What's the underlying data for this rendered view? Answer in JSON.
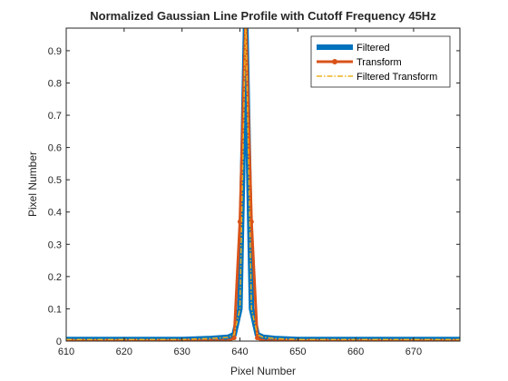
{
  "chart_data": {
    "type": "line",
    "title": "Normalized Gaussian Line Profile with Cutoff Frequency 45Hz",
    "xlabel": "Pixel Number",
    "ylabel": "Pixel Number",
    "xlim": [
      610,
      678
    ],
    "ylim": [
      0,
      0.97
    ],
    "xticks": [
      "610",
      "620",
      "630",
      "640",
      "650",
      "660",
      "670"
    ],
    "yticks": [
      "0",
      "0.1",
      "0.2",
      "0.3",
      "0.4",
      "0.5",
      "0.6",
      "0.7",
      "0.8",
      "0.9"
    ],
    "grid": false,
    "legend_position": "top-right",
    "series": [
      {
        "name": "Filtered",
        "color": "#0072BD",
        "style": "solid-thick",
        "x": [
          610,
          630,
          635,
          638,
          639,
          640,
          641,
          642,
          643,
          644,
          646,
          650,
          678
        ],
        "y": [
          0.005,
          0.005,
          0.008,
          0.012,
          0.02,
          0.1,
          1.0,
          0.1,
          0.02,
          0.012,
          0.008,
          0.005,
          0.005
        ]
      },
      {
        "name": "Transform",
        "color": "#D95319",
        "style": "solid-marker",
        "x": [
          610,
          611,
          612,
          613,
          614,
          615,
          616,
          617,
          618,
          619,
          620,
          621,
          622,
          623,
          624,
          625,
          626,
          627,
          628,
          629,
          630,
          631,
          632,
          633,
          634,
          635,
          636,
          637,
          638,
          639,
          640,
          641,
          642,
          643,
          644,
          645,
          646,
          647,
          648,
          649,
          650,
          651,
          652,
          653,
          654,
          655,
          656,
          657,
          658,
          659,
          660,
          661,
          662,
          663,
          664,
          665,
          666,
          667,
          668,
          669,
          670,
          671,
          672,
          673,
          674,
          675,
          676,
          677,
          678
        ],
        "y": [
          0,
          0,
          0,
          0,
          0,
          0,
          0,
          0,
          0,
          0,
          0,
          0,
          0,
          0,
          0,
          0,
          0,
          0,
          0,
          0,
          0,
          0,
          0,
          0,
          0,
          0,
          0,
          0,
          0,
          0.01,
          0.37,
          1.0,
          0.37,
          0.01,
          0,
          0,
          0,
          0,
          0,
          0,
          0,
          0,
          0,
          0,
          0,
          0,
          0,
          0,
          0,
          0,
          0,
          0,
          0,
          0,
          0,
          0,
          0,
          0,
          0,
          0,
          0,
          0,
          0,
          0,
          0,
          0,
          0,
          0,
          0
        ]
      },
      {
        "name": "Filtered Transform",
        "color": "#EDB120",
        "style": "dash-dot",
        "x": [
          610,
          630,
          635,
          638,
          639,
          640,
          641,
          642,
          643,
          644,
          646,
          650,
          678
        ],
        "y": [
          0.005,
          0.005,
          0.008,
          0.012,
          0.02,
          0.1,
          1.0,
          0.1,
          0.02,
          0.012,
          0.008,
          0.005,
          0.005
        ]
      }
    ]
  }
}
